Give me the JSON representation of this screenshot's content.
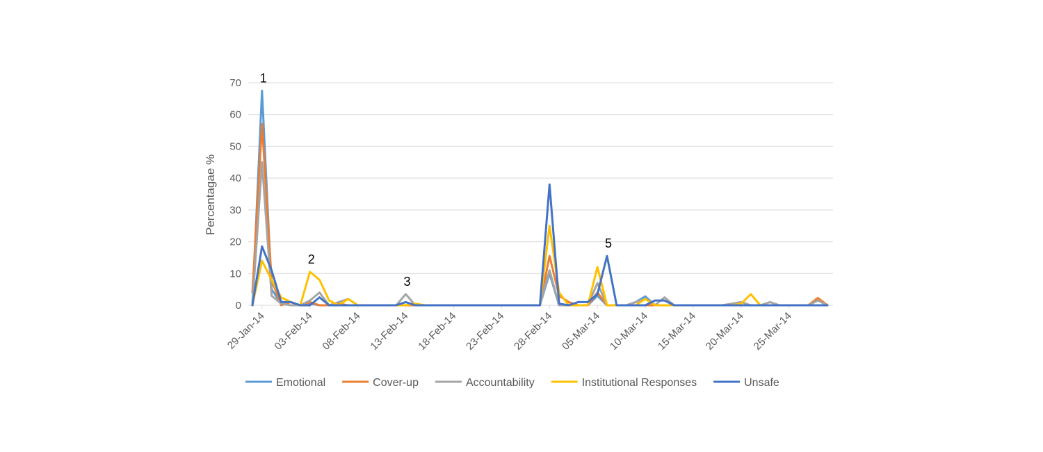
{
  "chart_data": {
    "type": "line",
    "title": "",
    "xlabel": "",
    "ylabel": "Percentagae %",
    "ylim": [
      0,
      70
    ],
    "yticks": [
      0,
      10,
      20,
      30,
      40,
      50,
      60,
      70
    ],
    "grid": true,
    "legend_position": "bottom",
    "x_tick_labels": [
      "29-Jan-14",
      "03-Feb-14",
      "08-Feb-14",
      "13-Feb-14",
      "18-Feb-14",
      "23-Feb-14",
      "28-Feb-14",
      "05-Mar-14",
      "10-Mar-14",
      "15-Mar-14",
      "20-Mar-14",
      "25-Mar-14"
    ],
    "x": [
      "28-Jan-14",
      "29-Jan-14",
      "30-Jan-14",
      "31-Jan-14",
      "01-Feb-14",
      "02-Feb-14",
      "03-Feb-14",
      "04-Feb-14",
      "05-Feb-14",
      "06-Feb-14",
      "07-Feb-14",
      "08-Feb-14",
      "09-Feb-14",
      "10-Feb-14",
      "11-Feb-14",
      "12-Feb-14",
      "13-Feb-14",
      "14-Feb-14",
      "15-Feb-14",
      "16-Feb-14",
      "17-Feb-14",
      "18-Feb-14",
      "19-Feb-14",
      "20-Feb-14",
      "21-Feb-14",
      "22-Feb-14",
      "23-Feb-14",
      "24-Feb-14",
      "25-Feb-14",
      "26-Feb-14",
      "27-Feb-14",
      "28-Feb-14",
      "01-Mar-14",
      "02-Mar-14",
      "03-Mar-14",
      "04-Mar-14",
      "05-Mar-14",
      "06-Mar-14",
      "07-Mar-14",
      "08-Mar-14",
      "09-Mar-14",
      "10-Mar-14",
      "11-Mar-14",
      "12-Mar-14",
      "13-Mar-14",
      "14-Mar-14",
      "15-Mar-14",
      "16-Mar-14",
      "17-Mar-14",
      "18-Mar-14",
      "19-Mar-14",
      "20-Mar-14",
      "21-Mar-14",
      "22-Mar-14",
      "23-Mar-14",
      "24-Mar-14",
      "25-Mar-14",
      "26-Mar-14",
      "27-Mar-14",
      "28-Mar-14",
      "29-Mar-14"
    ],
    "series": [
      {
        "name": "Emotional",
        "color": "#5B9BD5",
        "values": [
          0,
          67.5,
          5,
          0.5,
          1,
          0,
          0.5,
          0,
          0,
          0,
          0,
          0,
          0,
          0,
          0,
          0,
          0,
          0,
          0,
          0,
          0,
          0,
          0,
          0,
          0,
          0,
          0,
          0,
          0,
          0,
          0,
          10,
          0,
          0,
          0,
          0,
          3,
          0,
          0,
          0,
          1,
          2.8,
          0,
          0,
          0,
          0,
          0,
          0,
          0,
          0,
          0,
          0,
          0,
          0,
          0,
          0,
          0,
          0,
          0,
          0,
          0
        ]
      },
      {
        "name": "Cover-up",
        "color": "#ED7D31",
        "values": [
          4,
          57,
          8,
          0,
          1,
          0,
          1,
          0,
          0,
          0.5,
          0,
          0,
          0,
          0,
          0,
          0,
          0,
          0,
          0,
          0,
          0,
          0,
          0,
          0,
          0,
          0,
          0,
          0,
          0,
          0,
          0,
          15.5,
          3,
          1,
          0,
          0,
          4,
          0,
          0,
          0,
          0,
          0,
          0,
          0,
          0,
          0,
          0,
          0,
          0,
          0,
          0,
          0,
          0,
          0,
          0,
          0,
          0,
          0,
          0,
          2.3,
          0
        ]
      },
      {
        "name": "Accountability",
        "color": "#A5A5A5",
        "values": [
          0,
          45,
          3,
          0.5,
          0,
          0,
          1.5,
          4,
          0,
          1,
          2,
          0,
          0,
          0,
          0,
          0,
          3.5,
          0,
          0,
          0,
          0,
          0,
          0,
          0,
          0,
          0,
          0,
          0,
          0,
          0,
          0,
          11,
          0,
          0,
          0,
          0,
          7,
          0,
          0,
          0,
          1,
          2,
          0,
          2.5,
          0,
          0,
          0,
          0,
          0,
          0,
          0.5,
          1,
          0,
          0,
          1,
          0,
          0,
          0,
          0,
          1.5,
          0
        ]
      },
      {
        "name": "Institutional Responses",
        "color": "#FFC000",
        "values": [
          0,
          14,
          8,
          2.5,
          1,
          0,
          10.5,
          8,
          1.5,
          0,
          2,
          0,
          0,
          0,
          0,
          0,
          0,
          0.5,
          0,
          0,
          0,
          0,
          0,
          0,
          0,
          0,
          0,
          0,
          0,
          0,
          0,
          25,
          4,
          0,
          0,
          0,
          12,
          0,
          0,
          0,
          0,
          2,
          0,
          0,
          0,
          0,
          0,
          0,
          0,
          0,
          0,
          0.5,
          3.5,
          0,
          0,
          0,
          0,
          0,
          0,
          0,
          0
        ]
      },
      {
        "name": "Unsafe",
        "color": "#4472C4",
        "values": [
          0,
          18.5,
          11,
          1,
          1,
          0,
          0,
          2.5,
          0,
          0,
          0,
          0,
          0,
          0,
          0,
          0,
          1,
          0,
          0,
          0,
          0,
          0,
          0,
          0,
          0,
          0,
          0,
          0,
          0,
          0,
          0,
          38,
          0.5,
          0,
          1,
          1,
          3.5,
          15.5,
          0,
          0,
          0,
          0,
          1.5,
          1.5,
          0,
          0,
          0,
          0,
          0,
          0,
          0,
          0,
          0,
          0,
          0,
          0,
          0,
          0,
          0,
          0,
          0
        ]
      }
    ],
    "annotations": [
      {
        "label": "1",
        "x": "29-Jan-14",
        "y": 67.5
      },
      {
        "label": "2",
        "x": "03-Feb-14",
        "y": 10.5
      },
      {
        "label": "3",
        "x": "13-Feb-14",
        "y": 3.5
      },
      {
        "label": "5",
        "x": "06-Mar-14",
        "y": 15.5
      }
    ]
  }
}
